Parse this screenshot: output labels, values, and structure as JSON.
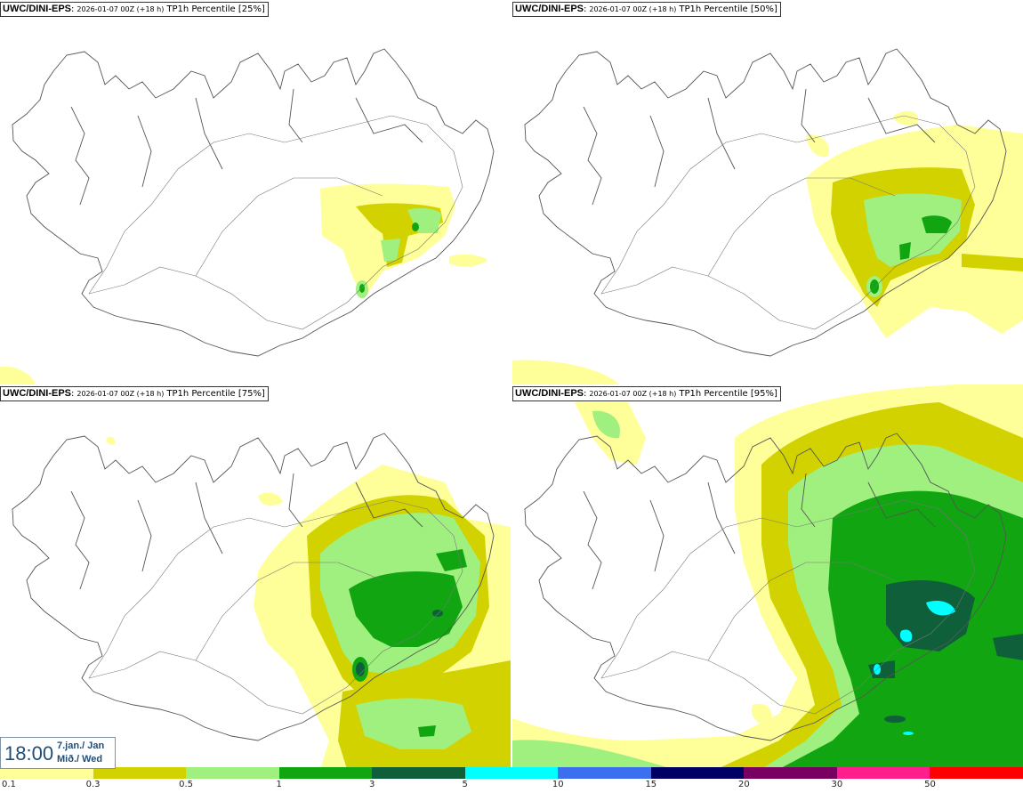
{
  "panels": [
    {
      "source": "UWC/DINI-EPS",
      "run": "2026-01-07 00Z (+18 h)",
      "variable": "TP1h Percentile [25%]"
    },
    {
      "source": "UWC/DINI-EPS",
      "run": "2026-01-07 00Z (+18 h)",
      "variable": "TP1h Percentile [50%]"
    },
    {
      "source": "UWC/DINI-EPS",
      "run": "2026-01-07 00Z (+18 h)",
      "variable": "TP1h Percentile [75%]"
    },
    {
      "source": "UWC/DINI-EPS",
      "run": "2026-01-07 00Z (+18 h)",
      "variable": "TP1h Percentile [95%]"
    }
  ],
  "valid_time": {
    "time": "18:00",
    "date_line1": "7.jan./ Jan",
    "date_line2": "Mið./ Wed"
  },
  "legend": {
    "labels": [
      "0.1",
      "0.3",
      "0.5",
      "1",
      "3",
      "5",
      "10",
      "15",
      "20",
      "30",
      "50"
    ],
    "colors": [
      "#ffff99",
      "#d2d200",
      "#a0f080",
      "#12a512",
      "#0f5f3a",
      "#00ffff",
      "#3c6ef0",
      "#000064",
      "#780060",
      "#ff1e8c",
      "#ff0000"
    ]
  },
  "colors": {
    "land_outline": "#555555",
    "road": "#777777",
    "label_text": "#1e4e79"
  }
}
